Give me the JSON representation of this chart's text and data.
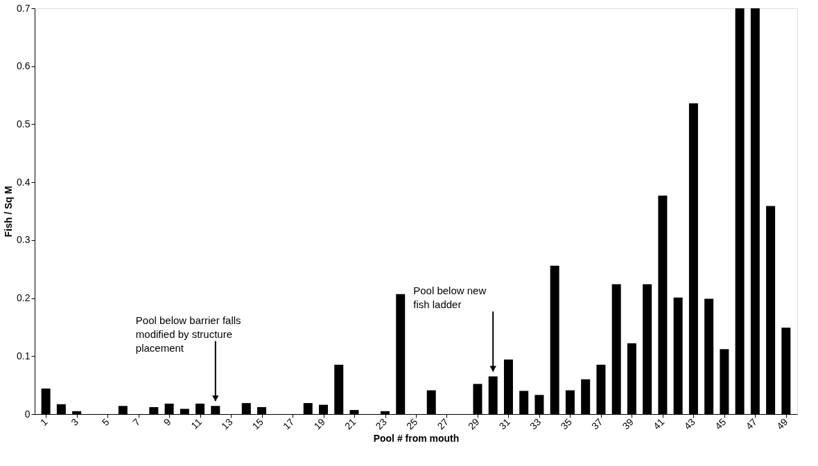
{
  "chart_data": {
    "type": "bar",
    "xlabel": "Pool # from mouth",
    "ylabel": "Fish / Sq M",
    "x": [
      1,
      2,
      3,
      4,
      5,
      6,
      7,
      8,
      9,
      10,
      11,
      12,
      13,
      14,
      15,
      16,
      17,
      18,
      19,
      20,
      21,
      22,
      23,
      24,
      25,
      26,
      27,
      28,
      29,
      30,
      31,
      32,
      33,
      34,
      35,
      36,
      37,
      38,
      39,
      40,
      41,
      42,
      43,
      44,
      45,
      46,
      47,
      48,
      49
    ],
    "values": [
      0.044,
      0.017,
      0.005,
      0,
      0,
      0.014,
      0,
      0.012,
      0.018,
      0.009,
      0.018,
      0.014,
      0,
      0.019,
      0.012,
      0,
      0,
      0.019,
      0.016,
      0.085,
      0.007,
      0,
      0.005,
      0.207,
      0,
      0.041,
      0,
      0,
      0.052,
      0.065,
      0.094,
      0.04,
      0.033,
      0.256,
      0.041,
      0.06,
      0.085,
      0.224,
      0.122,
      0.224,
      0.377,
      0.201,
      0.536,
      0.199,
      0.112,
      0.7,
      0.7,
      0.359,
      0.149
    ],
    "color": "#000000",
    "xlim": [
      0.5,
      49.5
    ],
    "xticks": [
      1,
      3,
      5,
      7,
      9,
      11,
      13,
      15,
      17,
      19,
      21,
      23,
      25,
      27,
      29,
      31,
      33,
      35,
      37,
      39,
      41,
      43,
      45,
      47,
      49
    ],
    "ylim": [
      0,
      0.7
    ],
    "yticks": [
      0,
      0.1,
      0.2,
      0.3,
      0.4,
      0.5,
      0.6,
      0.7
    ],
    "grid": false,
    "annotations": [
      {
        "text": "Pool below barrier falls\nmodified by structure\nplacement",
        "x": 12,
        "y": 0.014
      },
      {
        "text": "Pool below new\nfish ladder",
        "x": 30,
        "y": 0.065
      }
    ]
  }
}
